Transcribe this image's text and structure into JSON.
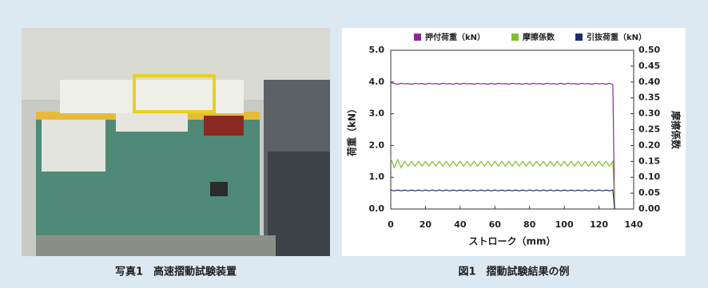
{
  "captions": {
    "photo": "写真1　高速摺動試験装置",
    "figure": "図1　摺動試験結果の例"
  },
  "chart_data": {
    "type": "line",
    "x_label": "ストローク（mm）",
    "y_label": "荷重（kN）",
    "y2_label": "摩擦係数",
    "x": [
      0,
      2,
      4,
      6,
      8,
      10,
      12,
      14,
      16,
      18,
      20,
      22,
      24,
      26,
      28,
      30,
      32,
      34,
      36,
      38,
      40,
      42,
      44,
      46,
      48,
      50,
      52,
      54,
      56,
      58,
      60,
      62,
      64,
      66,
      68,
      70,
      72,
      74,
      76,
      78,
      80,
      82,
      84,
      86,
      88,
      90,
      92,
      94,
      96,
      98,
      100,
      102,
      104,
      106,
      108,
      110,
      112,
      114,
      116,
      118,
      120,
      122,
      124,
      126,
      128,
      129
    ],
    "series": [
      {
        "name": "押付荷重（kN）",
        "color": "#8b2a8c",
        "values": [
          3.98,
          3.95,
          3.93,
          3.96,
          3.94,
          3.95,
          3.93,
          3.96,
          3.94,
          3.95,
          3.93,
          3.96,
          3.94,
          3.95,
          3.93,
          3.96,
          3.94,
          3.95,
          3.93,
          3.96,
          3.93,
          3.96,
          3.94,
          3.95,
          3.93,
          3.96,
          3.94,
          3.95,
          3.93,
          3.96,
          3.93,
          3.96,
          3.94,
          3.95,
          3.93,
          3.96,
          3.94,
          3.95,
          3.93,
          3.96,
          3.93,
          3.96,
          3.94,
          3.95,
          3.93,
          3.96,
          3.94,
          3.95,
          3.93,
          3.96,
          3.93,
          3.96,
          3.94,
          3.95,
          3.93,
          3.96,
          3.94,
          3.95,
          3.93,
          3.96,
          3.94,
          3.95,
          3.93,
          3.96,
          3.92,
          0
        ]
      },
      {
        "name": "摩擦係数",
        "color": "#7dc030",
        "axis": "y2",
        "values": [
          0.16,
          0.13,
          0.155,
          0.13,
          0.15,
          0.135,
          0.15,
          0.135,
          0.15,
          0.135,
          0.15,
          0.135,
          0.15,
          0.135,
          0.15,
          0.135,
          0.15,
          0.135,
          0.15,
          0.135,
          0.15,
          0.135,
          0.15,
          0.135,
          0.15,
          0.135,
          0.15,
          0.135,
          0.15,
          0.135,
          0.15,
          0.135,
          0.15,
          0.135,
          0.15,
          0.135,
          0.15,
          0.135,
          0.15,
          0.135,
          0.15,
          0.135,
          0.15,
          0.135,
          0.15,
          0.135,
          0.15,
          0.135,
          0.15,
          0.135,
          0.15,
          0.135,
          0.15,
          0.135,
          0.15,
          0.135,
          0.15,
          0.135,
          0.15,
          0.135,
          0.15,
          0.135,
          0.15,
          0.135,
          0.15,
          0
        ]
      },
      {
        "name": "引抜荷重（kN）",
        "color": "#1f2a6e",
        "values": [
          0.6,
          0.57,
          0.6,
          0.57,
          0.6,
          0.57,
          0.6,
          0.57,
          0.6,
          0.57,
          0.6,
          0.57,
          0.6,
          0.57,
          0.6,
          0.57,
          0.6,
          0.57,
          0.6,
          0.57,
          0.6,
          0.57,
          0.6,
          0.57,
          0.6,
          0.57,
          0.6,
          0.57,
          0.6,
          0.57,
          0.6,
          0.57,
          0.6,
          0.57,
          0.6,
          0.57,
          0.6,
          0.57,
          0.6,
          0.57,
          0.6,
          0.57,
          0.6,
          0.57,
          0.6,
          0.57,
          0.6,
          0.57,
          0.6,
          0.57,
          0.6,
          0.57,
          0.6,
          0.57,
          0.6,
          0.57,
          0.6,
          0.57,
          0.6,
          0.57,
          0.6,
          0.57,
          0.6,
          0.57,
          0.6,
          0
        ]
      }
    ],
    "xlim": [
      0,
      140
    ],
    "xticks": [
      0,
      20,
      40,
      60,
      80,
      100,
      120,
      140
    ],
    "ylim": [
      0,
      5
    ],
    "yticks": [
      {
        "value": 0,
        "label": "0.0"
      },
      {
        "value": 1,
        "label": "1.0"
      },
      {
        "value": 2,
        "label": "2.0"
      },
      {
        "value": 3,
        "label": "3.0"
      },
      {
        "value": 4,
        "label": "4.0"
      },
      {
        "value": 5,
        "label": "5.0"
      }
    ],
    "y2lim": [
      0,
      0.5
    ],
    "y2ticks": [
      {
        "value": 0,
        "label": "0.00"
      },
      {
        "value": 0.05,
        "label": "0.05"
      },
      {
        "value": 0.1,
        "label": "0.10"
      },
      {
        "value": 0.15,
        "label": "0.15"
      },
      {
        "value": 0.2,
        "label": "0.20"
      },
      {
        "value": 0.25,
        "label": "0.25"
      },
      {
        "value": 0.3,
        "label": "0.30"
      },
      {
        "value": 0.35,
        "label": "0.35"
      },
      {
        "value": 0.4,
        "label": "0.40"
      },
      {
        "value": 0.45,
        "label": "0.45"
      },
      {
        "value": 0.5,
        "label": "0.50"
      }
    ],
    "legend": "top",
    "grid": false
  }
}
